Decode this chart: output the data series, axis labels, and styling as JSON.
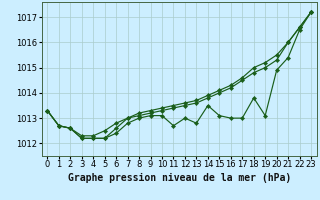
{
  "bg_color": "#cceeff",
  "grid_color": "#aacccc",
  "line_color": "#1a5e1a",
  "marker_color": "#1a5e1a",
  "title": "Graphe pression niveau de la mer (hPa)",
  "xlim": [
    -0.5,
    23.5
  ],
  "ylim": [
    1011.5,
    1017.6
  ],
  "yticks": [
    1012,
    1013,
    1014,
    1015,
    1016,
    1017
  ],
  "xticks": [
    0,
    1,
    2,
    3,
    4,
    5,
    6,
    7,
    8,
    9,
    10,
    11,
    12,
    13,
    14,
    15,
    16,
    17,
    18,
    19,
    20,
    21,
    22,
    23
  ],
  "line1_y": [
    1013.3,
    1012.7,
    1012.6,
    1012.2,
    1012.2,
    1012.2,
    1012.4,
    1012.8,
    1013.0,
    1013.1,
    1013.1,
    1012.7,
    1013.0,
    1012.8,
    1013.5,
    1013.1,
    1013.0,
    1013.0,
    1013.8,
    1013.1,
    1014.9,
    1015.4,
    1016.5,
    1017.2
  ],
  "line2_y": [
    1013.3,
    1012.7,
    1012.6,
    1012.3,
    1012.3,
    1012.5,
    1012.8,
    1013.0,
    1013.1,
    1013.2,
    1013.3,
    1013.4,
    1013.5,
    1013.6,
    1013.8,
    1014.0,
    1014.2,
    1014.5,
    1014.8,
    1015.0,
    1015.3,
    1016.0,
    1016.6,
    1017.2
  ],
  "line3_y": [
    1013.3,
    1012.7,
    1012.6,
    1012.2,
    1012.2,
    1012.2,
    1012.6,
    1013.0,
    1013.2,
    1013.3,
    1013.4,
    1013.5,
    1013.6,
    1013.7,
    1013.9,
    1014.1,
    1014.3,
    1014.6,
    1015.0,
    1015.2,
    1015.5,
    1016.0,
    1016.6,
    1017.2
  ],
  "font_size_ticks": 6,
  "font_size_title": 7
}
